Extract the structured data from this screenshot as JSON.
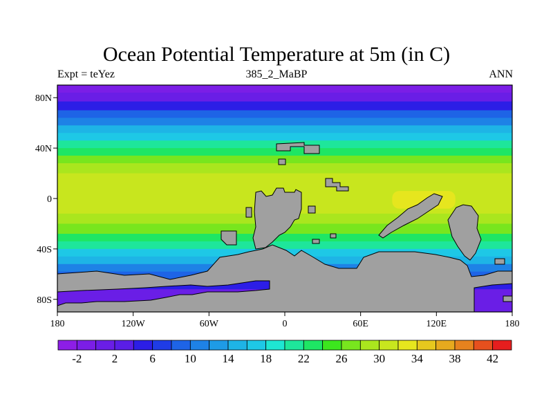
{
  "header": {
    "title": "Ocean Potential Temperature at 5m (in C)",
    "left_label": "Expt = teYez",
    "center_label": "385_2_MaBP",
    "right_label": "ANN"
  },
  "map": {
    "projection": "cylindrical-equidistant",
    "lon_range": [
      -180,
      180
    ],
    "lat_range": [
      -90,
      90
    ],
    "x_ticks": [
      {
        "value": -180,
        "label": "180"
      },
      {
        "value": -120,
        "label": "120W"
      },
      {
        "value": -60,
        "label": "60W"
      },
      {
        "value": 0,
        "label": "0"
      },
      {
        "value": 60,
        "label": "60E"
      },
      {
        "value": 120,
        "label": "120E"
      },
      {
        "value": 180,
        "label": "180"
      }
    ],
    "y_ticks": [
      {
        "value": 80,
        "label": "80N"
      },
      {
        "value": 40,
        "label": "40N"
      },
      {
        "value": 0,
        "label": "0"
      },
      {
        "value": -40,
        "label": "40S"
      },
      {
        "value": -80,
        "label": "80S"
      }
    ],
    "land_color": "#a0a0a0",
    "temperature_bands": [
      {
        "lat_top": 90,
        "lat_bottom": 84,
        "value": -2
      },
      {
        "lat_top": 84,
        "lat_bottom": 77,
        "value": 1
      },
      {
        "lat_top": 77,
        "lat_bottom": 70,
        "value": 5
      },
      {
        "lat_top": 70,
        "lat_bottom": 64,
        "value": 8
      },
      {
        "lat_top": 64,
        "lat_bottom": 58,
        "value": 11
      },
      {
        "lat_top": 58,
        "lat_bottom": 52,
        "value": 14
      },
      {
        "lat_top": 52,
        "lat_bottom": 46,
        "value": 17
      },
      {
        "lat_top": 46,
        "lat_bottom": 40,
        "value": 20
      },
      {
        "lat_top": 40,
        "lat_bottom": 34,
        "value": 23
      },
      {
        "lat_top": 34,
        "lat_bottom": 28,
        "value": 26
      },
      {
        "lat_top": 28,
        "lat_bottom": 20,
        "value": 28
      },
      {
        "lat_top": 20,
        "lat_bottom": -12,
        "value": 30
      },
      {
        "lat_top": -12,
        "lat_bottom": -20,
        "value": 28
      },
      {
        "lat_top": -20,
        "lat_bottom": -28,
        "value": 26
      },
      {
        "lat_top": -28,
        "lat_bottom": -34,
        "value": 23
      },
      {
        "lat_top": -34,
        "lat_bottom": -40,
        "value": 20
      },
      {
        "lat_top": -40,
        "lat_bottom": -46,
        "value": 17
      },
      {
        "lat_top": -46,
        "lat_bottom": -52,
        "value": 14
      },
      {
        "lat_top": -52,
        "lat_bottom": -58,
        "value": 11
      },
      {
        "lat_top": -58,
        "lat_bottom": -64,
        "value": 8
      },
      {
        "lat_top": -64,
        "lat_bottom": -72,
        "value": 4
      },
      {
        "lat_top": -72,
        "lat_bottom": -90,
        "value": 0
      }
    ],
    "warm_pool": {
      "lon_min": 85,
      "lon_max": 135,
      "lat_min": -8,
      "lat_max": 6,
      "value": 33
    }
  },
  "colorbar": {
    "min": -4,
    "max": 44,
    "step": 2,
    "labels": [
      "-2",
      "2",
      "6",
      "10",
      "14",
      "18",
      "22",
      "26",
      "30",
      "34",
      "38",
      "42"
    ],
    "colors": [
      "#8d1ee6",
      "#7b1ee6",
      "#6a1ee6",
      "#5a1ee6",
      "#2c1ee6",
      "#1f3ce6",
      "#1e64e6",
      "#1e82e6",
      "#1e9be6",
      "#1eb4e6",
      "#1ec8e6",
      "#1ee6d2",
      "#1ee69b",
      "#1ee664",
      "#3ce61e",
      "#78e61e",
      "#aae61e",
      "#c8e61e",
      "#e6e61e",
      "#e6c81e",
      "#e6aa1e",
      "#e6821e",
      "#e6501e",
      "#e61e1e"
    ]
  }
}
